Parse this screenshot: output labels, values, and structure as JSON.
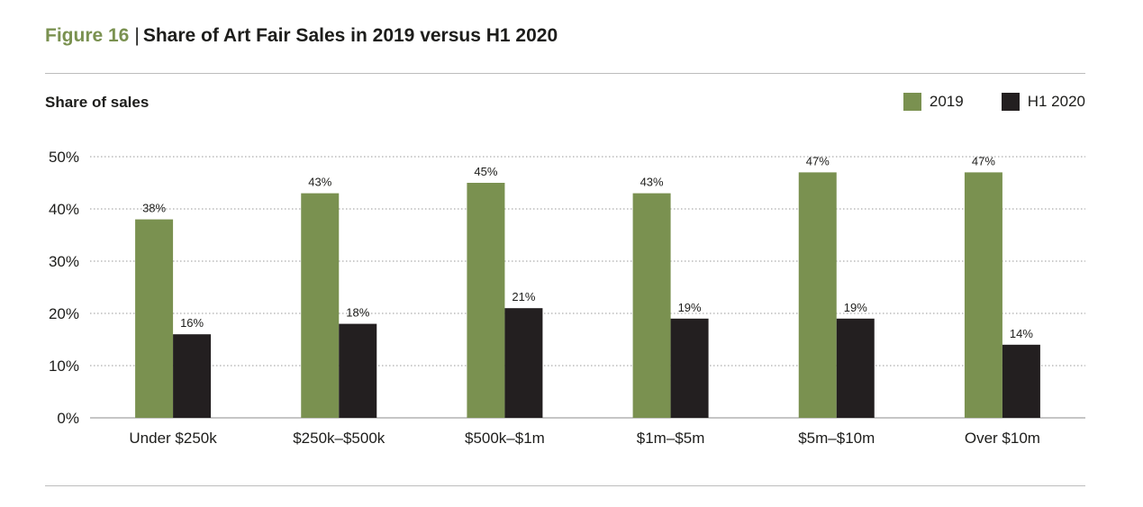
{
  "figure": {
    "number": "Figure 16",
    "separator": "|",
    "title": "Share of Art Fair Sales in 2019 versus H1 2020"
  },
  "colors": {
    "series_2019": "#7a9150",
    "series_h1_2020": "#231f20",
    "grid": "#9a9a9a"
  },
  "chart_data": {
    "type": "bar",
    "ylabel": "Share of sales",
    "ylim": [
      0,
      50
    ],
    "yticks": [
      "0%",
      "10%",
      "20%",
      "30%",
      "40%",
      "50%"
    ],
    "grid": true,
    "legend_position": "top-right",
    "categories": [
      "Under $250k",
      "$250k–$500k",
      "$500k–$1m",
      "$1m–$5m",
      "$5m–$10m",
      "Over $10m"
    ],
    "series": [
      {
        "name": "2019",
        "values": [
          38,
          43,
          45,
          43,
          47,
          47
        ],
        "labels": [
          "38%",
          "43%",
          "45%",
          "43%",
          "47%",
          "47%"
        ]
      },
      {
        "name": "H1 2020",
        "values": [
          16,
          18,
          21,
          19,
          19,
          14
        ],
        "labels": [
          "16%",
          "18%",
          "21%",
          "19%",
          "19%",
          "14%"
        ]
      }
    ]
  }
}
